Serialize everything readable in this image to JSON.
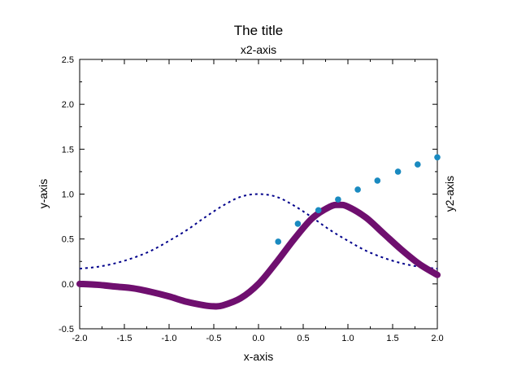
{
  "chart_data": {
    "type": "line",
    "title": "The title",
    "xlabel": "x-axis",
    "ylabel": "y-axis",
    "x2label": "x2-axis",
    "y2label": "y2-axis",
    "xlim": [
      -2.0,
      2.0
    ],
    "ylim": [
      -0.5,
      2.5
    ],
    "xticks": [
      "-2.0",
      "-1.5",
      "-1.0",
      "-0.5",
      "0.0",
      "0.5",
      "1.0",
      "1.5",
      "2.0"
    ],
    "yticks": [
      "-0.5",
      "0.0",
      "0.5",
      "1.0",
      "1.5",
      "2.0",
      "2.5"
    ],
    "grid": false,
    "legend": "none",
    "series": [
      {
        "style": "dotted-line",
        "color": "#00008b",
        "x": [
          -2.0,
          -1.8,
          -1.6,
          -1.4,
          -1.2,
          -1.0,
          -0.8,
          -0.6,
          -0.4,
          -0.2,
          0.0,
          0.2,
          0.4,
          0.6,
          0.8,
          1.0,
          1.2,
          1.4,
          1.6,
          1.8,
          2.0
        ],
        "values": [
          0.17,
          0.19,
          0.23,
          0.29,
          0.37,
          0.48,
          0.6,
          0.74,
          0.87,
          0.97,
          1.0,
          0.97,
          0.87,
          0.74,
          0.6,
          0.48,
          0.37,
          0.29,
          0.23,
          0.19,
          0.17
        ]
      },
      {
        "style": "thick-line",
        "color": "#6f0f6f",
        "x": [
          -2.0,
          -1.8,
          -1.6,
          -1.4,
          -1.2,
          -1.0,
          -0.8,
          -0.6,
          -0.5,
          -0.4,
          -0.2,
          0.0,
          0.2,
          0.4,
          0.6,
          0.8,
          0.9,
          1.0,
          1.2,
          1.4,
          1.6,
          1.8,
          2.0
        ],
        "values": [
          0.0,
          -0.01,
          -0.03,
          -0.05,
          -0.09,
          -0.14,
          -0.2,
          -0.24,
          -0.25,
          -0.24,
          -0.16,
          0.0,
          0.24,
          0.5,
          0.73,
          0.86,
          0.88,
          0.86,
          0.74,
          0.56,
          0.38,
          0.22,
          0.1
        ]
      },
      {
        "style": "points",
        "color": "#1a8ac0",
        "x": [
          0.22,
          0.44,
          0.67,
          0.89,
          1.11,
          1.33,
          1.56,
          1.78,
          2.0
        ],
        "values": [
          0.47,
          0.67,
          0.82,
          0.94,
          1.05,
          1.15,
          1.25,
          1.33,
          1.41
        ]
      }
    ]
  }
}
